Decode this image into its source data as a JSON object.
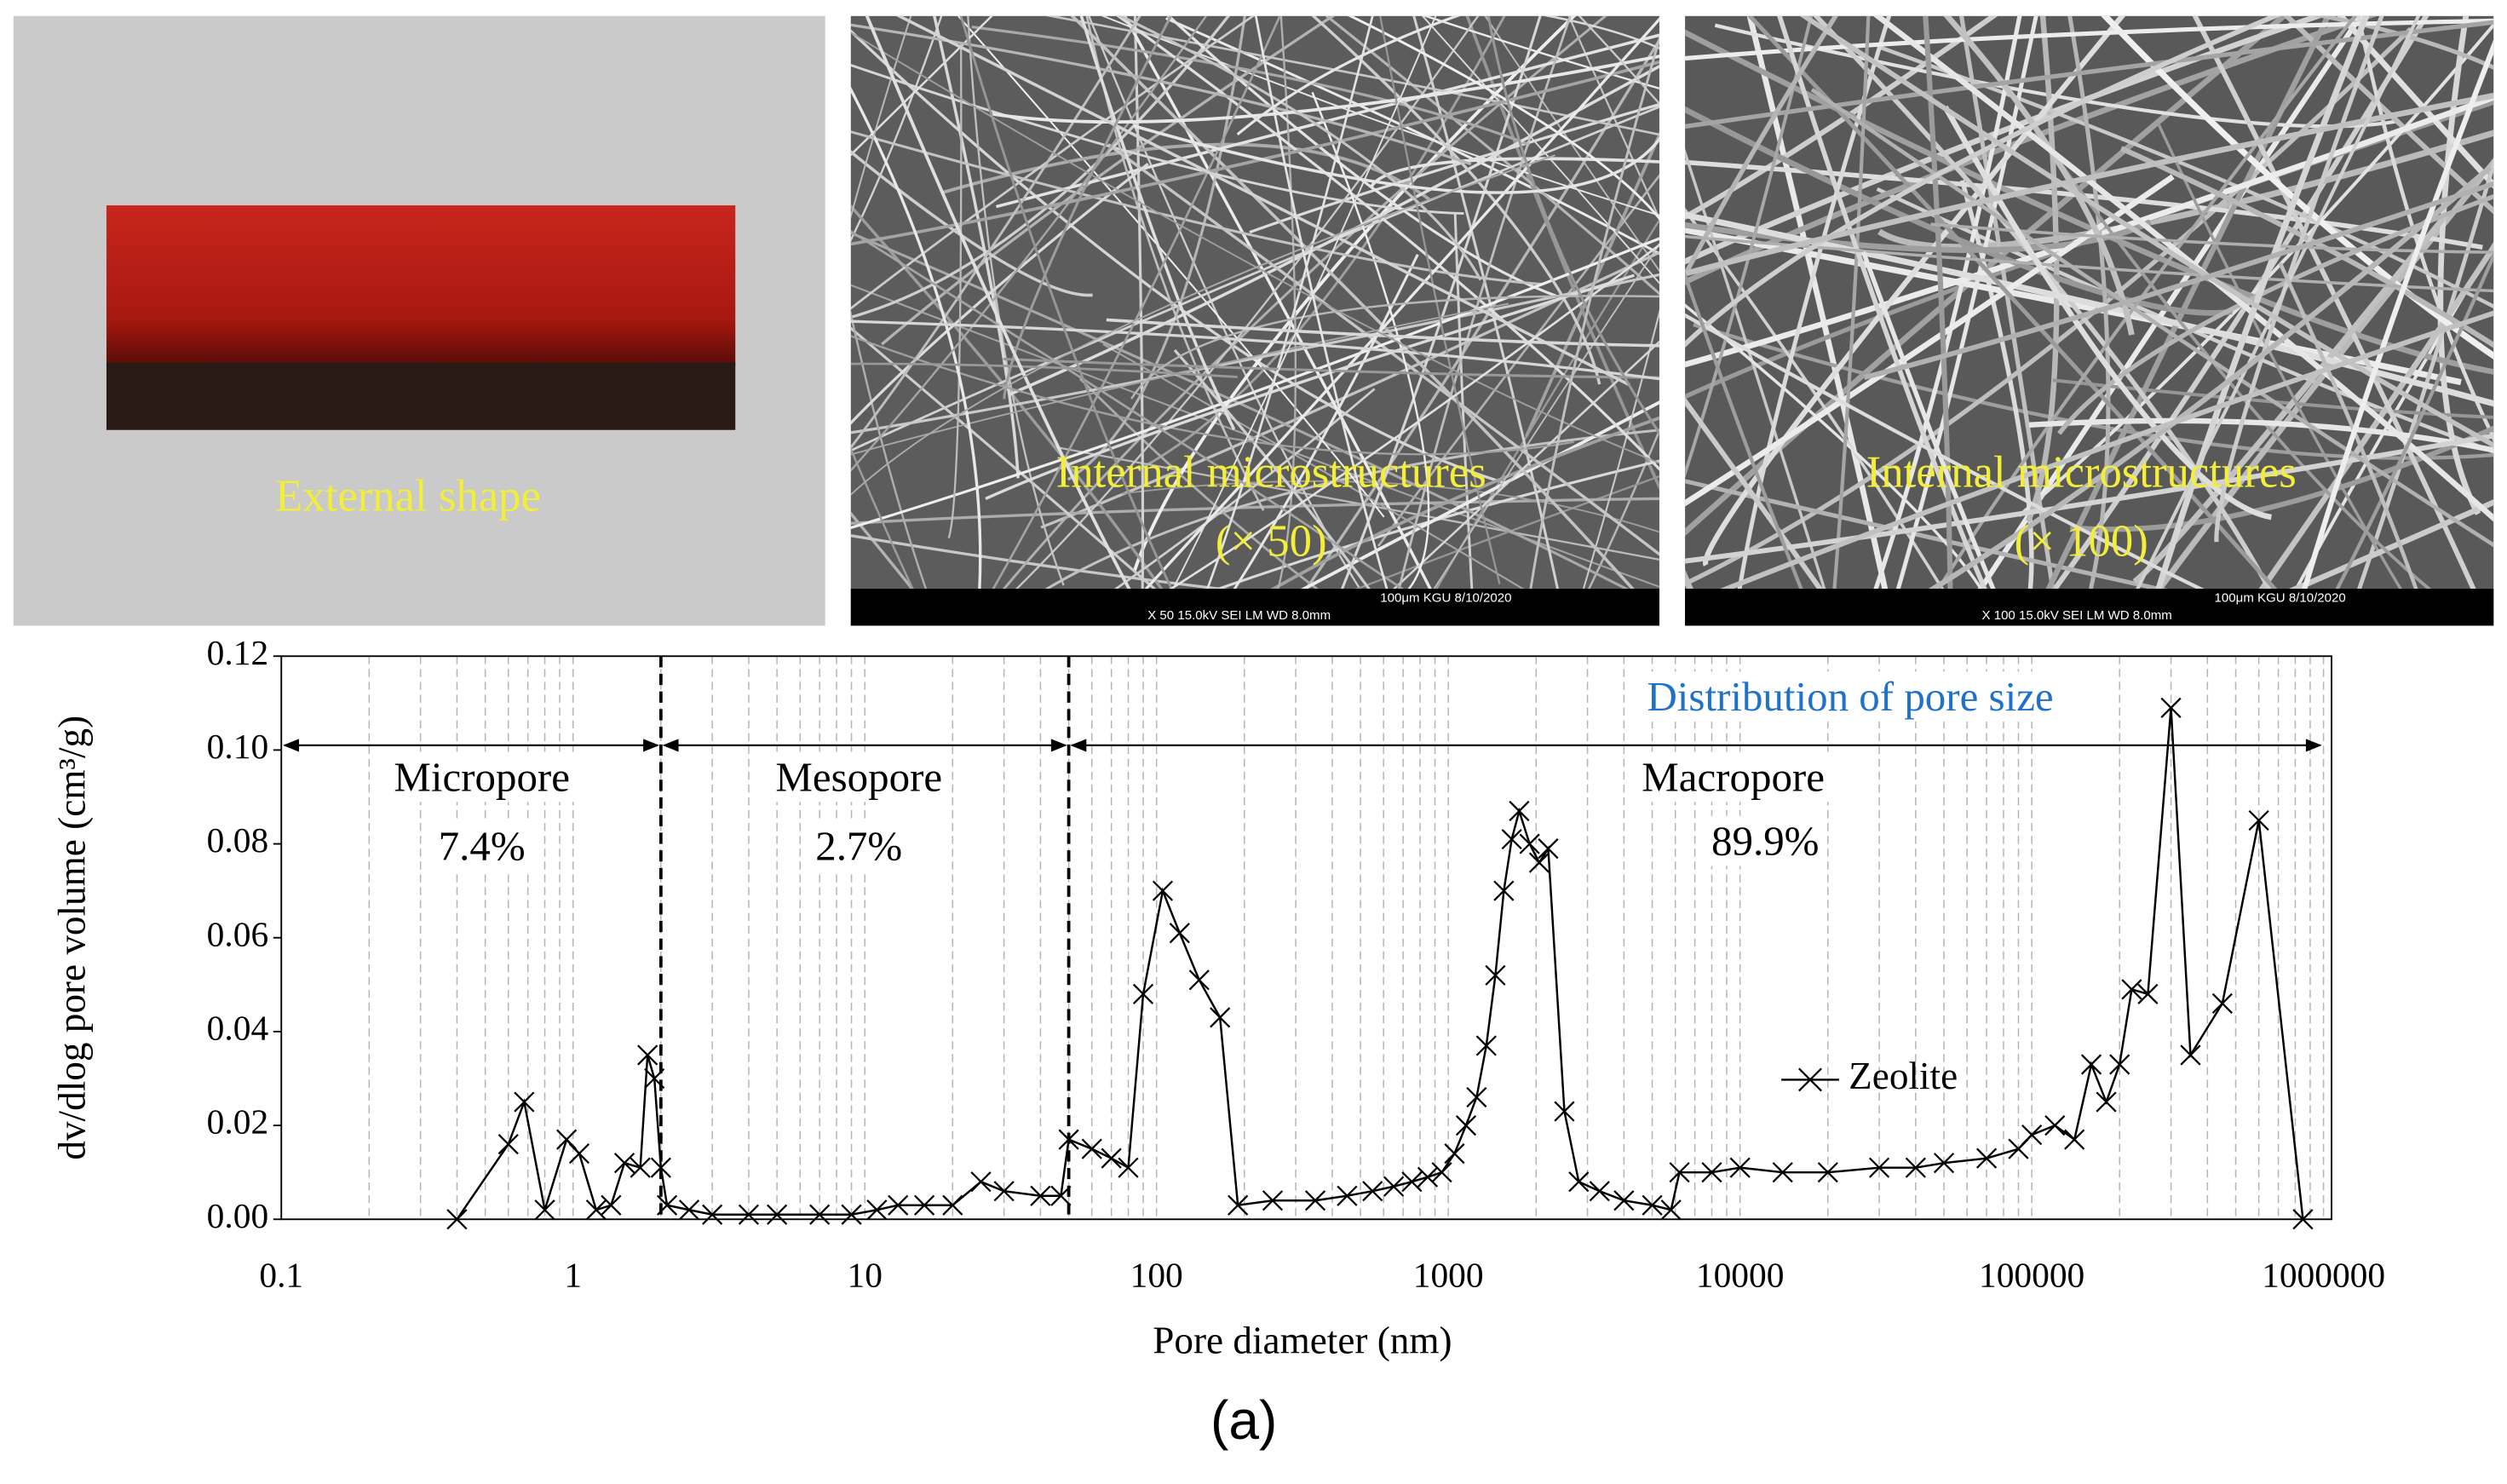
{
  "panels": [
    {
      "label": "External shape"
    },
    {
      "label": "Internal microstructures",
      "magnification": "(× 50)",
      "bar_top": "100μm  KGU          8/10/2020",
      "bar_bottom": "X 50        15.0kV SEI        LM        WD 8.0mm"
    },
    {
      "label": "Internal microstructures",
      "magnification": "(× 100)",
      "bar_top": "100μm  KGU          8/10/2020",
      "bar_bottom": "X 100        15.0kV SEI        LM        WD 8.0mm"
    }
  ],
  "caption": "(a)",
  "chart_data": {
    "type": "line",
    "x_label": "Pore diameter (nm)",
    "y_label": "dv/dlog pore volume (cm³/g)",
    "log_x": true,
    "xlim": [
      0.1,
      1000000
    ],
    "xticks": [
      0.1,
      1,
      10,
      100,
      1000,
      10000,
      100000,
      1000000
    ],
    "ylim": [
      0,
      0.12
    ],
    "yticks": [
      {
        "value": 0,
        "label": "0.00"
      },
      {
        "value": 0.02,
        "label": "0.02"
      },
      {
        "value": 0.04,
        "label": "0.04"
      },
      {
        "value": 0.06,
        "label": "0.06"
      },
      {
        "value": 0.08,
        "label": "0.08"
      },
      {
        "value": 0.1,
        "label": "0.10"
      },
      {
        "value": 0.12,
        "label": "0.12"
      }
    ],
    "minor_grid": true,
    "boundaries": [
      2,
      50
    ],
    "annotations": [
      "Micropore",
      "7.4%",
      "Mesopore",
      "2.7%",
      "Macropore",
      "89.9%",
      "Distribution of pore size"
    ],
    "legend": "right",
    "series": [
      {
        "name": "Zeolite",
        "color": "#000000",
        "marker": "x",
        "x": [
          0.4,
          0.6,
          0.68,
          0.8,
          0.95,
          1.05,
          1.2,
          1.35,
          1.5,
          1.7,
          1.8,
          1.9,
          2.0,
          2.1,
          2.5,
          3,
          4,
          5,
          7,
          9,
          11,
          13,
          16,
          20,
          25,
          30,
          40,
          47,
          50,
          60,
          70,
          80,
          90,
          105,
          120,
          140,
          165,
          190,
          250,
          350,
          450,
          550,
          650,
          750,
          850,
          950,
          1050,
          1150,
          1250,
          1350,
          1450,
          1550,
          1650,
          1750,
          1900,
          2050,
          2200,
          2500,
          2800,
          3300,
          4000,
          5000,
          5800,
          6200,
          8000,
          10000,
          14000,
          20000,
          30000,
          40000,
          50000,
          70000,
          90000,
          100000,
          120000,
          140000,
          160000,
          180000,
          200000,
          220000,
          250000,
          300000,
          350000,
          450000,
          600000,
          850000
        ],
        "values": [
          0,
          0.016,
          0.025,
          0.002,
          0.017,
          0.014,
          0.002,
          0.003,
          0.012,
          0.011,
          0.035,
          0.03,
          0.011,
          0.003,
          0.002,
          0.001,
          0.001,
          0.001,
          0.001,
          0.001,
          0.002,
          0.003,
          0.003,
          0.003,
          0.008,
          0.006,
          0.005,
          0.005,
          0.017,
          0.015,
          0.013,
          0.011,
          0.048,
          0.07,
          0.061,
          0.051,
          0.043,
          0.003,
          0.004,
          0.004,
          0.005,
          0.006,
          0.007,
          0.008,
          0.009,
          0.01,
          0.014,
          0.02,
          0.026,
          0.037,
          0.052,
          0.07,
          0.081,
          0.087,
          0.08,
          0.076,
          0.079,
          0.023,
          0.008,
          0.006,
          0.004,
          0.003,
          0.002,
          0.01,
          0.01,
          0.011,
          0.01,
          0.01,
          0.011,
          0.011,
          0.012,
          0.013,
          0.015,
          0.018,
          0.02,
          0.017,
          0.033,
          0.025,
          0.033,
          0.049,
          0.048,
          0.109,
          0.035,
          0.046,
          0.085,
          0
        ]
      }
    ]
  }
}
